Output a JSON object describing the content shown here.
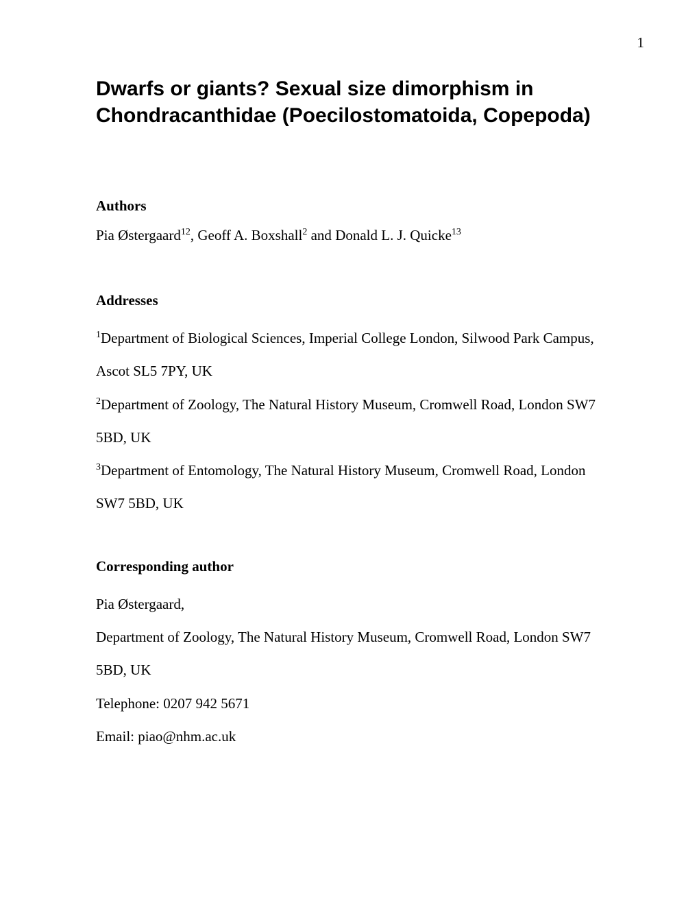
{
  "page_number": "1",
  "title": "Dwarfs or giants? Sexual size dimorphism in Chondracanthidae (Poecilostomatoida, Copepoda)",
  "authors_section": {
    "heading": "Authors",
    "authors": [
      {
        "name": "Pia Østergaard",
        "sup": "12"
      },
      {
        "name": "Geoff A. Boxshall",
        "sup": "2"
      },
      {
        "name": "Donald L. J. Quicke",
        "sup": "13"
      }
    ],
    "sep1": ", ",
    "sep2": " and "
  },
  "addresses_section": {
    "heading": "Addresses",
    "items": [
      {
        "sup": "1",
        "text": "Department of Biological Sciences, Imperial College London, Silwood Park Campus, Ascot SL5 7PY, UK"
      },
      {
        "sup": "2",
        "text": "Department of Zoology, The Natural History Museum, Cromwell Road, London SW7 5BD, UK"
      },
      {
        "sup": "3",
        "text": "Department of Entomology, The Natural History Museum, Cromwell Road, London SW7 5BD, UK"
      }
    ]
  },
  "corresponding_section": {
    "heading": "Corresponding author",
    "name": "Pia Østergaard,",
    "address": "Department of Zoology, The Natural History Museum, Cromwell Road, London SW7 5BD, UK",
    "telephone": "Telephone: 0207 942 5671",
    "email": "Email: piao@nhm.ac.uk"
  }
}
